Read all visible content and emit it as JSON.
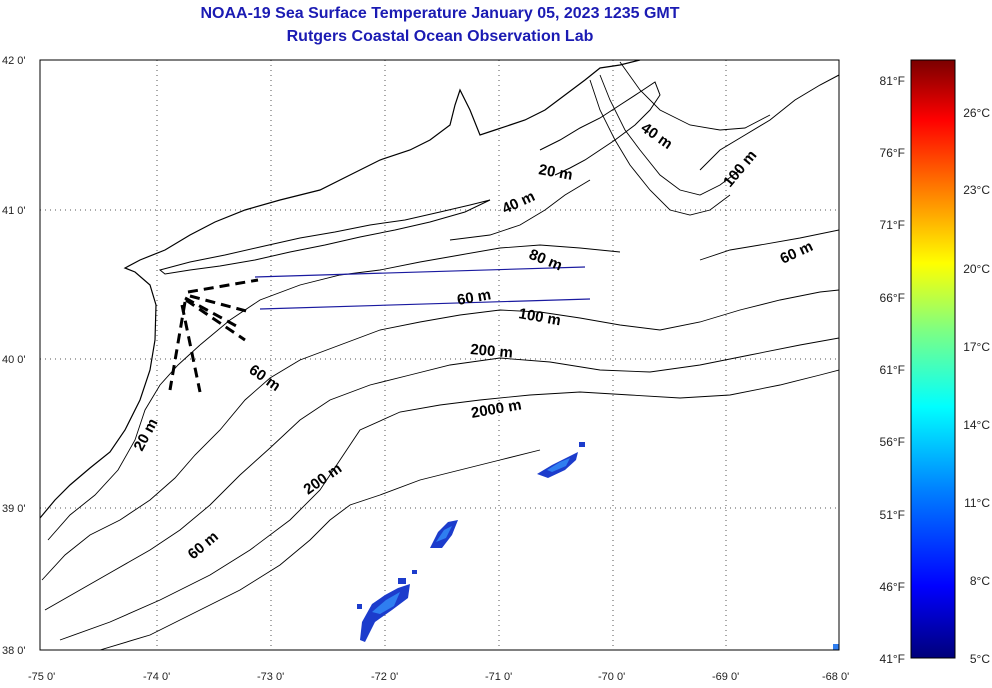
{
  "header": {
    "line1": "NOAA-19 Sea Surface Temperature January 05, 2023 1235 GMT",
    "line2": "Rutgers Coastal Ocean Observation Lab"
  },
  "axes": {
    "lon_ticks": [
      "-75 0'",
      "-74 0'",
      "-73 0'",
      "-72 0'",
      "-71 0'",
      "-70 0'",
      "-69 0'",
      "-68 0'"
    ],
    "lat_ticks": [
      "42 0'",
      "41 0'",
      "40 0'",
      "39 0'",
      "38 0'"
    ]
  },
  "isobath_labels": {
    "l40a": "40 m",
    "l20a": "20 m",
    "l40b": "40 m",
    "l100a": "100 m",
    "l60a": "60 m",
    "l60b": "60 m",
    "l80": "80 m",
    "l100b": "100 m",
    "l200a": "200 m",
    "l60c": "60 m",
    "l2000": "2000 m",
    "l20b": "20 m",
    "l200b": "200 m",
    "l60d": "60 m"
  },
  "colorbar": {
    "fahrenheit": [
      "81°F",
      "76°F",
      "71°F",
      "66°F",
      "61°F",
      "56°F",
      "51°F",
      "46°F",
      "41°F"
    ],
    "celsius": [
      "26°C",
      "23°C",
      "20°C",
      "17°C",
      "14°C",
      "11°C",
      "8°C",
      "5°C"
    ],
    "gradient": [
      "#00007a",
      "#0000ff",
      "#0080ff",
      "#00ffff",
      "#80ff80",
      "#ffff00",
      "#ff8000",
      "#ff0000",
      "#7a0000"
    ]
  },
  "colors": {
    "title": "#1b1bb3",
    "transect": "#1a1aa0",
    "sst_patch_dark": "#1c3ccc",
    "sst_patch_light": "#2f7ef0"
  }
}
